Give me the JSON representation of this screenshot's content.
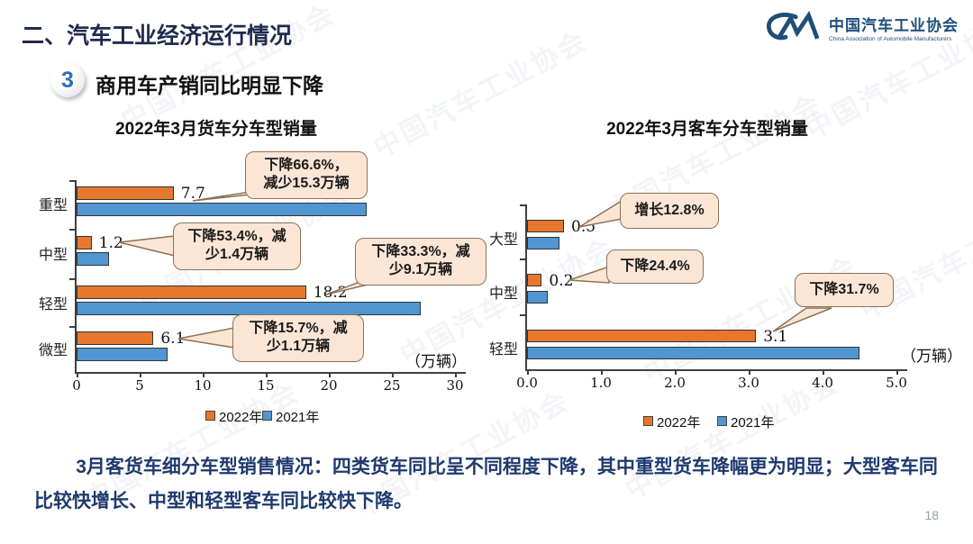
{
  "header": {
    "title": "二、汽车工业经济运行情况",
    "section_number": "3",
    "section_title": "商用车产销同比明显下降",
    "logo_cn": "中国汽车工业协会",
    "logo_en": "China Association of Automobile Manufacturers"
  },
  "watermark": {
    "text": "中国汽车工业协会"
  },
  "colors": {
    "series_2022": "#E8772E",
    "series_2021": "#4F96D2",
    "callout_bg": "#FBE5D5",
    "callout_border": "#8B7355",
    "title_navy": "#1f2b4d"
  },
  "chart_data": [
    {
      "type": "bar",
      "orientation": "horizontal",
      "title": "2022年3月货车分车型销量",
      "unit_label": "（万辆）",
      "categories": [
        "重型",
        "中型",
        "轻型",
        "微型"
      ],
      "series": [
        {
          "name": "2022年",
          "color": "#E8772E",
          "values": [
            7.7,
            1.2,
            18.2,
            6.1
          ]
        },
        {
          "name": "2021年",
          "color": "#4F96D2",
          "values": [
            23.0,
            2.6,
            27.3,
            7.2
          ]
        }
      ],
      "value_labels": [
        "7.7",
        "1.2",
        "18.2",
        "6.1"
      ],
      "xlim": [
        0,
        30
      ],
      "xticks": [
        0,
        5,
        10,
        15,
        20,
        25,
        30
      ],
      "xtick_labels": [
        "0",
        "5",
        "10",
        "15",
        "20",
        "25",
        "30"
      ],
      "legend_position": "bottom-center",
      "grid": false,
      "callouts": [
        {
          "target": "重型",
          "lines": [
            "下降66.6%，",
            "减少15.3万辆"
          ]
        },
        {
          "target": "中型",
          "lines": [
            "下降53.4%，减",
            "少1.4万辆"
          ]
        },
        {
          "target": "轻型",
          "lines": [
            "下降33.3%，减",
            "少9.1万辆"
          ]
        },
        {
          "target": "微型",
          "lines": [
            "下降15.7%，减",
            "少1.1万辆"
          ]
        }
      ]
    },
    {
      "type": "bar",
      "orientation": "horizontal",
      "title": "2022年3月客车分车型销量",
      "unit_label": "（万辆）",
      "categories": [
        "大型",
        "中型",
        "轻型"
      ],
      "series": [
        {
          "name": "2022年",
          "color": "#E8772E",
          "values": [
            0.5,
            0.2,
            3.1
          ]
        },
        {
          "name": "2021年",
          "color": "#4F96D2",
          "values": [
            0.44,
            0.28,
            4.5
          ]
        }
      ],
      "value_labels": [
        "0.5",
        "0.2",
        "3.1"
      ],
      "xlim": [
        0,
        5
      ],
      "xticks": [
        0,
        1,
        2,
        3,
        4,
        5
      ],
      "xtick_labels": [
        "0.0",
        "1.0",
        "2.0",
        "3.0",
        "4.0",
        "5.0"
      ],
      "legend_position": "bottom-center",
      "grid": false,
      "callouts": [
        {
          "target": "大型",
          "lines": [
            "增长12.8%"
          ]
        },
        {
          "target": "中型",
          "lines": [
            "下降24.4%"
          ]
        },
        {
          "target": "轻型",
          "lines": [
            "下降31.7%"
          ]
        }
      ]
    }
  ],
  "footer": {
    "summary": "3月客货车细分车型销售情况：四类货车同比呈不同程度下降，其中重型货车降幅更为明显；大型客车同比较快增长、中型和轻型客车同比较快下降。",
    "page_number": "18"
  }
}
